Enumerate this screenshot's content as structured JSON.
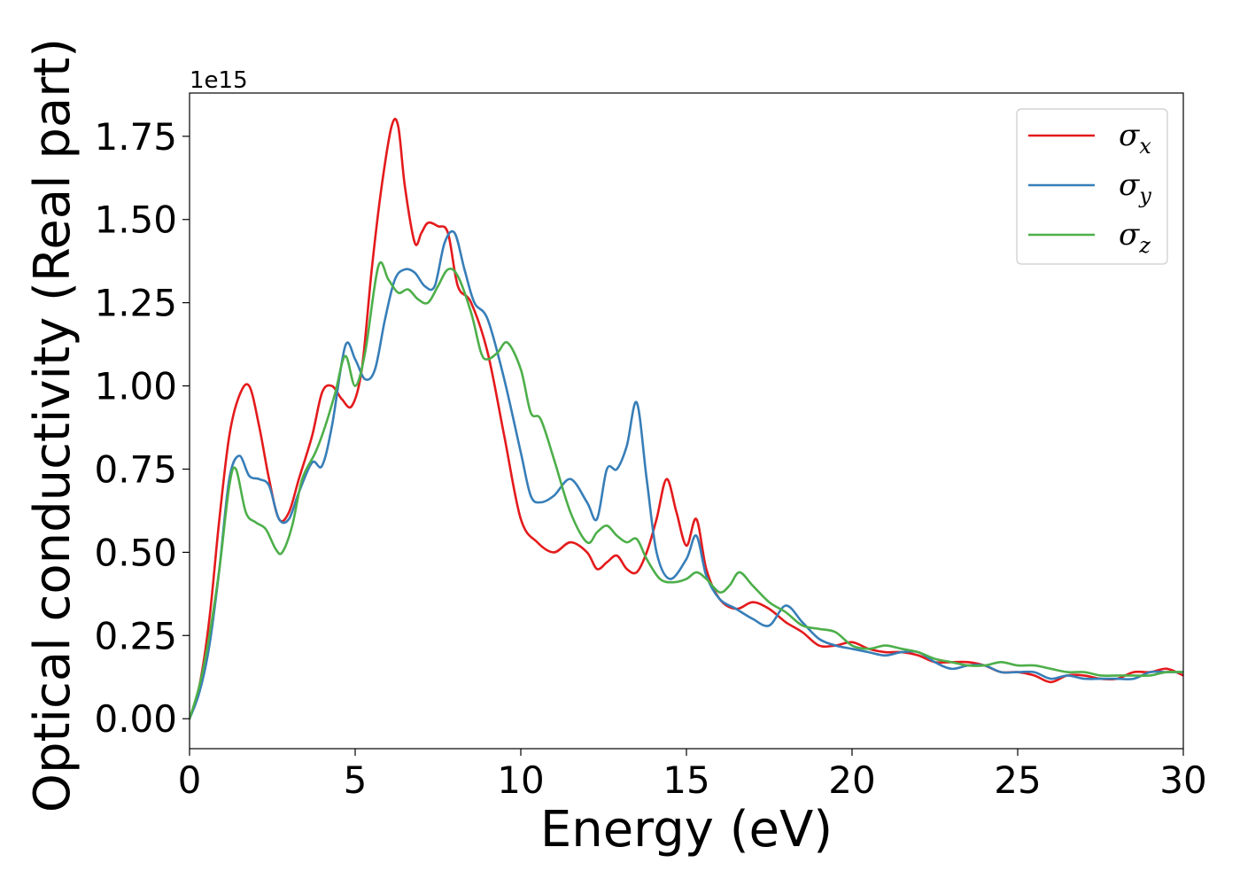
{
  "chart_data": {
    "type": "line",
    "xlabel": "Energy (eV)",
    "ylabel": "Optical conductivity (Real part)",
    "y_offset_label": "1e15",
    "xlim": [
      0,
      30
    ],
    "ylim": [
      -0.09,
      1.88
    ],
    "y_scale_note": "values in units of 1e15",
    "x_ticks": [
      0,
      5,
      10,
      15,
      20,
      25,
      30
    ],
    "x_tick_labels": [
      "0",
      "5",
      "10",
      "15",
      "20",
      "25",
      "30"
    ],
    "y_ticks": [
      0,
      0.25,
      0.5,
      0.75,
      1.0,
      1.25,
      1.5,
      1.75
    ],
    "y_tick_labels": [
      "0.00",
      "0.25",
      "0.50",
      "0.75",
      "1.00",
      "1.25",
      "1.50",
      "1.75"
    ],
    "grid": false,
    "legend_position": "top-right",
    "series": [
      {
        "name": "σx",
        "symbol": "σ",
        "subscript": "x",
        "color": "#e41a1c",
        "x": [
          0,
          0.3,
          0.6,
          0.9,
          1.2,
          1.5,
          1.8,
          2.1,
          2.4,
          2.7,
          3.0,
          3.3,
          3.7,
          4.0,
          4.3,
          4.6,
          4.9,
          5.2,
          5.5,
          5.8,
          6.1,
          6.3,
          6.5,
          6.8,
          7.0,
          7.2,
          7.5,
          7.8,
          8.1,
          8.5,
          9.0,
          9.5,
          10.0,
          10.5,
          11.0,
          11.5,
          12.0,
          12.3,
          12.6,
          12.9,
          13.2,
          13.5,
          13.8,
          14.1,
          14.4,
          14.7,
          15.0,
          15.3,
          15.6,
          16.0,
          16.5,
          17.0,
          17.5,
          18.0,
          18.5,
          19.0,
          19.5,
          20.0,
          20.5,
          21.0,
          21.5,
          22.0,
          22.5,
          23.0,
          23.5,
          24.0,
          24.5,
          25.0,
          25.5,
          26.0,
          26.5,
          27.0,
          27.5,
          28.0,
          28.5,
          29.0,
          29.5,
          30.0
        ],
        "y": [
          0,
          0.1,
          0.3,
          0.6,
          0.85,
          0.97,
          1.0,
          0.88,
          0.72,
          0.6,
          0.62,
          0.72,
          0.85,
          0.98,
          1.0,
          0.96,
          0.94,
          1.05,
          1.35,
          1.6,
          1.78,
          1.78,
          1.6,
          1.43,
          1.46,
          1.49,
          1.48,
          1.46,
          1.3,
          1.25,
          1.1,
          0.85,
          0.6,
          0.53,
          0.5,
          0.53,
          0.5,
          0.45,
          0.47,
          0.49,
          0.45,
          0.44,
          0.5,
          0.6,
          0.72,
          0.62,
          0.52,
          0.6,
          0.45,
          0.36,
          0.33,
          0.35,
          0.33,
          0.29,
          0.26,
          0.22,
          0.22,
          0.23,
          0.21,
          0.2,
          0.2,
          0.19,
          0.17,
          0.17,
          0.17,
          0.16,
          0.14,
          0.14,
          0.13,
          0.11,
          0.13,
          0.13,
          0.12,
          0.12,
          0.14,
          0.14,
          0.15,
          0.13
        ]
      },
      {
        "name": "σy",
        "symbol": "σ",
        "subscript": "y",
        "color": "#377eb8",
        "x": [
          0,
          0.3,
          0.6,
          0.9,
          1.2,
          1.5,
          1.8,
          2.1,
          2.4,
          2.7,
          3.0,
          3.3,
          3.7,
          4.0,
          4.3,
          4.7,
          5.0,
          5.3,
          5.6,
          5.9,
          6.2,
          6.5,
          6.8,
          7.1,
          7.4,
          7.7,
          8.0,
          8.3,
          8.6,
          9.0,
          9.5,
          10.0,
          10.3,
          10.6,
          11.0,
          11.5,
          12.0,
          12.3,
          12.6,
          12.9,
          13.2,
          13.5,
          13.8,
          14.1,
          14.5,
          15.0,
          15.3,
          15.6,
          16.0,
          16.5,
          17.0,
          17.5,
          18.0,
          18.5,
          19.0,
          19.5,
          20.0,
          20.5,
          21.0,
          21.5,
          22.0,
          22.5,
          23.0,
          23.5,
          24.0,
          24.5,
          25.0,
          25.5,
          26.0,
          26.5,
          27.0,
          27.5,
          28.0,
          28.5,
          29.0,
          29.5,
          30.0
        ],
        "y": [
          0,
          0.08,
          0.22,
          0.45,
          0.72,
          0.79,
          0.73,
          0.72,
          0.7,
          0.6,
          0.6,
          0.68,
          0.77,
          0.76,
          0.88,
          1.12,
          1.08,
          1.02,
          1.05,
          1.2,
          1.32,
          1.35,
          1.34,
          1.3,
          1.3,
          1.43,
          1.46,
          1.35,
          1.25,
          1.2,
          1.02,
          0.8,
          0.67,
          0.65,
          0.67,
          0.72,
          0.65,
          0.6,
          0.75,
          0.75,
          0.82,
          0.95,
          0.72,
          0.5,
          0.42,
          0.48,
          0.55,
          0.43,
          0.36,
          0.33,
          0.3,
          0.28,
          0.34,
          0.29,
          0.24,
          0.22,
          0.21,
          0.2,
          0.19,
          0.2,
          0.2,
          0.17,
          0.15,
          0.16,
          0.16,
          0.14,
          0.14,
          0.14,
          0.12,
          0.13,
          0.12,
          0.12,
          0.12,
          0.12,
          0.14,
          0.14,
          0.14
        ]
      },
      {
        "name": "σz",
        "symbol": "σ",
        "subscript": "z",
        "color": "#4daf4a",
        "x": [
          0,
          0.3,
          0.6,
          0.9,
          1.2,
          1.4,
          1.7,
          2.0,
          2.3,
          2.6,
          2.8,
          3.1,
          3.4,
          3.8,
          4.1,
          4.4,
          4.7,
          5.0,
          5.3,
          5.7,
          6.0,
          6.3,
          6.6,
          6.9,
          7.2,
          7.5,
          7.8,
          8.1,
          8.5,
          8.8,
          9.0,
          9.3,
          9.6,
          10.0,
          10.3,
          10.6,
          11.0,
          11.5,
          12.0,
          12.3,
          12.6,
          12.9,
          13.2,
          13.5,
          13.8,
          14.2,
          14.6,
          15.0,
          15.3,
          15.6,
          16.0,
          16.3,
          16.6,
          17.0,
          17.5,
          18.0,
          18.5,
          19.0,
          19.5,
          20.0,
          20.5,
          21.0,
          21.5,
          22.0,
          22.5,
          23.0,
          23.5,
          24.0,
          24.5,
          25.0,
          25.5,
          26.0,
          26.5,
          27.0,
          27.5,
          28.0,
          28.5,
          29.0,
          29.5,
          30.0
        ],
        "y": [
          0,
          0.1,
          0.25,
          0.45,
          0.7,
          0.75,
          0.62,
          0.59,
          0.57,
          0.51,
          0.5,
          0.58,
          0.72,
          0.8,
          0.88,
          0.98,
          1.09,
          1.0,
          1.1,
          1.36,
          1.32,
          1.28,
          1.29,
          1.26,
          1.25,
          1.3,
          1.35,
          1.33,
          1.22,
          1.1,
          1.08,
          1.1,
          1.13,
          1.05,
          0.92,
          0.9,
          0.78,
          0.62,
          0.53,
          0.56,
          0.58,
          0.55,
          0.53,
          0.54,
          0.48,
          0.42,
          0.41,
          0.42,
          0.44,
          0.42,
          0.38,
          0.4,
          0.44,
          0.4,
          0.35,
          0.32,
          0.28,
          0.27,
          0.26,
          0.22,
          0.21,
          0.22,
          0.21,
          0.2,
          0.18,
          0.17,
          0.16,
          0.16,
          0.17,
          0.16,
          0.16,
          0.15,
          0.14,
          0.14,
          0.13,
          0.13,
          0.13,
          0.13,
          0.14,
          0.14
        ]
      }
    ]
  }
}
